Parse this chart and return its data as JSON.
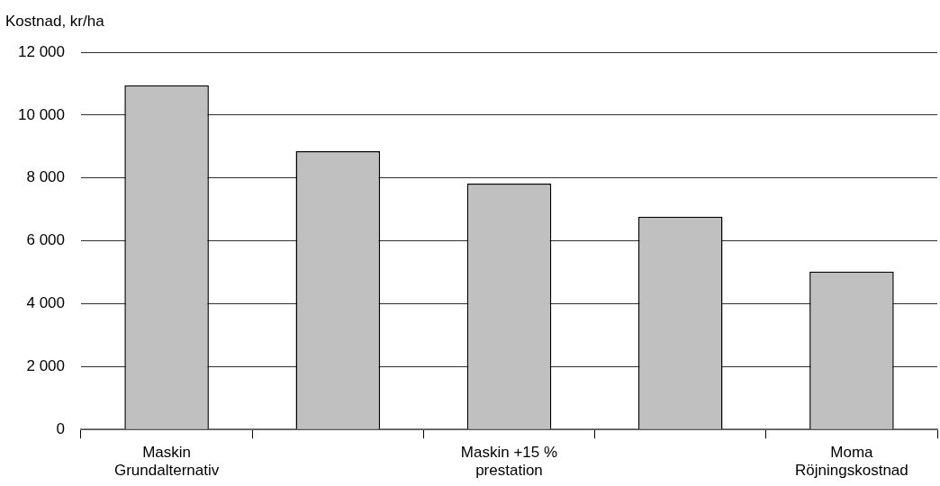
{
  "chart_data": {
    "type": "bar",
    "ylabel": "Kostnad, kr/ha",
    "categories": [
      "Maskin\nGrundalternativ",
      null,
      "Maskin +15 %\nprestation",
      null,
      "Moma\nRöjningskostnad"
    ],
    "values": [
      10950,
      8850,
      7820,
      6770,
      5020
    ],
    "color": "#c0c0c0",
    "ylim": [
      0,
      12000
    ],
    "yticks": [
      0,
      {
        "value": 2000,
        "label": "2 000"
      },
      {
        "value": 4000,
        "label": "4 000"
      },
      {
        "value": 6000,
        "label": "6 000"
      },
      {
        "value": 8000,
        "label": "8 000"
      },
      {
        "value": 10000,
        "label": "10 000"
      },
      {
        "value": 12000,
        "label": "12 000"
      }
    ],
    "grid": "y"
  }
}
